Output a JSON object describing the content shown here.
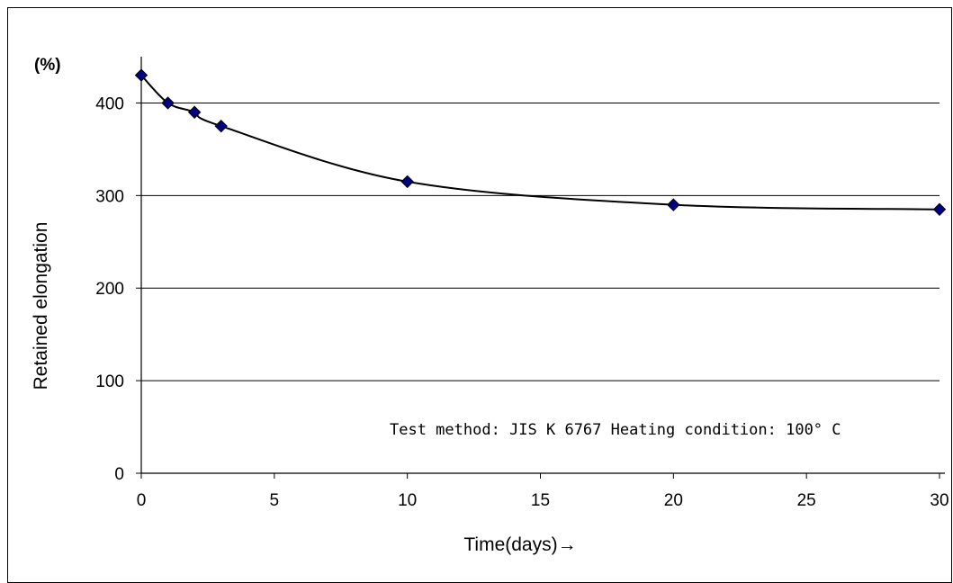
{
  "chart_data": {
    "type": "line",
    "title": "",
    "unit_label": "(%)",
    "xlabel": "Time(days)→",
    "ylabel": "Retained elongation",
    "x": [
      0,
      1,
      2,
      3,
      10,
      20,
      30
    ],
    "series": [
      {
        "values": [
          430,
          400,
          390,
          375,
          315,
          290,
          285
        ]
      }
    ],
    "xlim": [
      0,
      30
    ],
    "ylim": [
      0,
      450
    ],
    "xticks": [
      0,
      5,
      10,
      15,
      20,
      25,
      30
    ],
    "xtick_labels": [
      "0",
      "5",
      "10",
      "15",
      "20",
      "25",
      "30"
    ],
    "yticks": [
      0,
      100,
      200,
      300,
      400
    ],
    "ytick_labels": [
      "0",
      "100",
      "200",
      "300",
      "400"
    ],
    "annotation": "Test method: JIS K 6767 Heating condition: 100° C",
    "grid": "horizontal",
    "legend": "none",
    "colors": {
      "marker": "#000080",
      "line": "#000000",
      "grid": "#000000"
    }
  }
}
